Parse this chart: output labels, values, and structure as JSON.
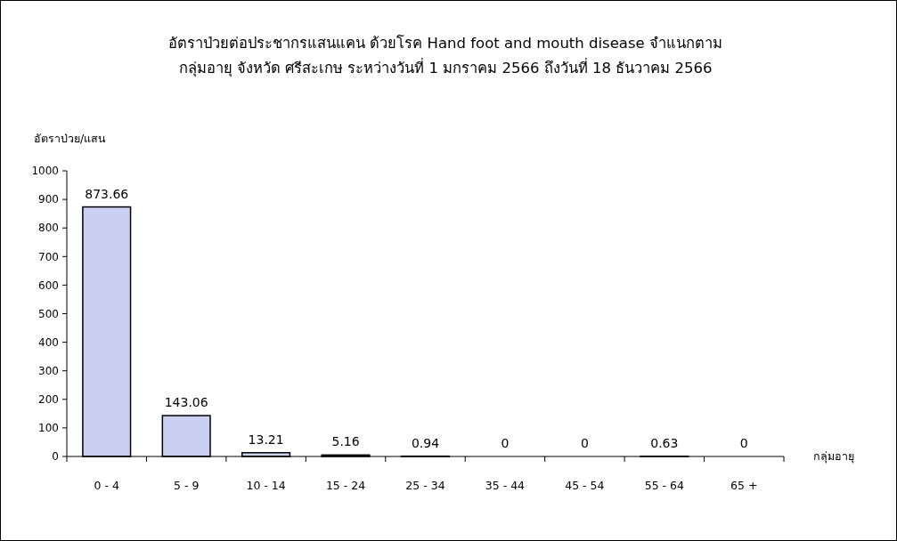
{
  "chart_data": {
    "type": "bar",
    "title": "อัตราป่วยต่อประชากรแสนแคน ด้วยโรค Hand foot and mouth disease  จำแนกตาม\nกลุ่มอายุ  จังหวัด ศรีสะเกษ  ระหว่างวันที่  1 มกราคม 2566  ถึงวันที่  18 ธันวาคม 2566",
    "ylabel": "อัตราป่วย/แสน",
    "xlabel": "กลุ่มอายุ",
    "categories": [
      "0 - 4",
      "5 - 9",
      "10 - 14",
      "15 - 24",
      "25 - 34",
      "35 - 44",
      "45 - 54",
      "55 - 64",
      "65 +"
    ],
    "values": [
      873.66,
      143.06,
      13.21,
      5.16,
      0.94,
      0,
      0,
      0.63,
      0
    ],
    "color": "#c9d0f2",
    "ylim": [
      0,
      1000
    ],
    "yticks": [
      0,
      100,
      200,
      300,
      400,
      500,
      600,
      700,
      800,
      900,
      1000
    ],
    "data_labels": true,
    "grid": false
  }
}
